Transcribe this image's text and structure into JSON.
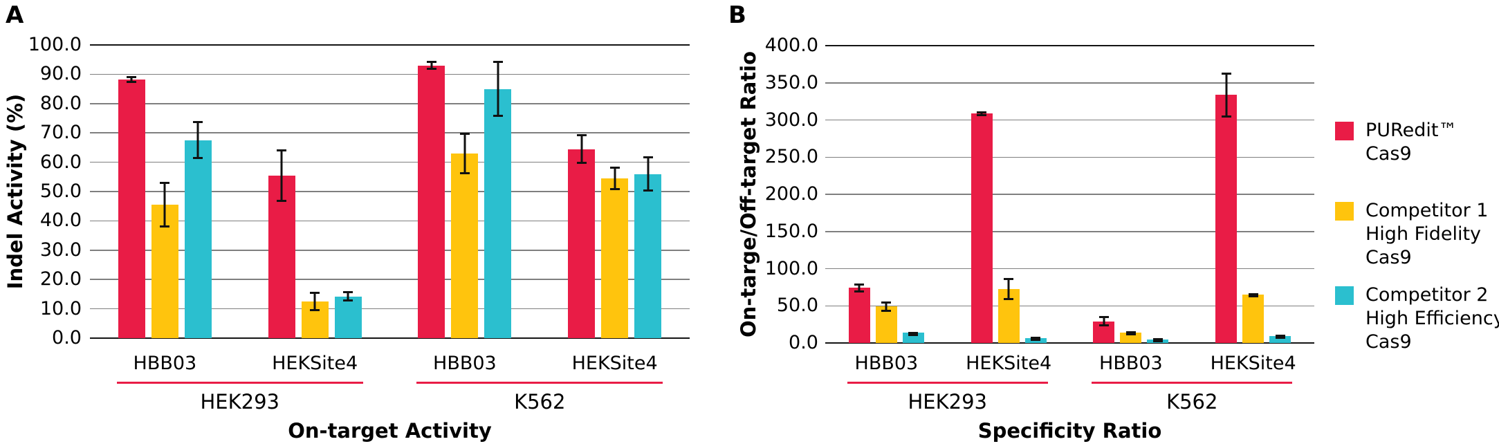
{
  "chart_data": [
    {
      "type": "bar",
      "panel_label": "A",
      "ylabel": "Indel Activity (%)",
      "xlabel": "On-target Activity",
      "ylim": [
        0,
        100
      ],
      "ytick_step": 10,
      "tick_decimals": 1,
      "grid": true,
      "legend_position": "right-of-figure",
      "categories": [
        "HBB03",
        "HEKSite4",
        "HBB03",
        "HEKSite4"
      ],
      "category_groups": [
        {
          "label": "HEK293",
          "span": [
            0,
            1
          ]
        },
        {
          "label": "K562",
          "span": [
            2,
            3
          ]
        }
      ],
      "series": [
        {
          "name": "PURedit™ Cas9",
          "color": "#E91C46",
          "values": [
            88.3,
            55.5,
            93.0,
            64.5
          ],
          "errors": [
            1.2,
            9.0,
            1.5,
            5.0
          ]
        },
        {
          "name": "Competitor 1 High Fidelity Cas9",
          "color": "#FFC40D",
          "values": [
            45.5,
            12.5,
            63.0,
            54.5
          ],
          "errors": [
            7.7,
            3.3,
            7.0,
            4.0
          ]
        },
        {
          "name": "Competitor 2 High Efficiency Cas9",
          "color": "#2BBFCF",
          "values": [
            67.5,
            14.2,
            85.0,
            56.0
          ],
          "errors": [
            6.5,
            1.8,
            9.5,
            6.0
          ]
        }
      ]
    },
    {
      "type": "bar",
      "panel_label": "B",
      "ylabel": "On-targe/Off-target Ratio",
      "xlabel": "Specificity Ratio",
      "ylim": [
        0,
        400
      ],
      "ytick_step": 50,
      "tick_decimals": 1,
      "grid": true,
      "legend_position": "right-of-figure",
      "categories": [
        "HBB03",
        "HEKSite4",
        "HBB03",
        "HEKSite4"
      ],
      "category_groups": [
        {
          "label": "HEK293",
          "span": [
            0,
            1
          ]
        },
        {
          "label": "K562",
          "span": [
            2,
            3
          ]
        }
      ],
      "series": [
        {
          "name": "PURedit™ Cas9",
          "color": "#E91C46",
          "values": [
            74.0,
            308.5,
            29.0,
            333.5
          ],
          "errors": [
            6.0,
            3.0,
            7.0,
            30.0
          ]
        },
        {
          "name": "Competitor 1 High Fidelity Cas9",
          "color": "#FFC40D",
          "values": [
            49.0,
            72.5,
            14.0,
            65.0
          ],
          "errors": [
            7.0,
            15.0,
            1.5,
            2.0
          ]
        },
        {
          "name": "Competitor 2 High Efficiency Cas9",
          "color": "#2BBFCF",
          "values": [
            13.5,
            6.5,
            5.0,
            9.0
          ],
          "errors": [
            1.0,
            1.5,
            1.5,
            2.0
          ]
        }
      ]
    }
  ],
  "legend": {
    "items": [
      {
        "color": "#E91C46",
        "lines": [
          "PURedit™",
          "Cas9"
        ]
      },
      {
        "color": "#FFC40D",
        "lines": [
          "Competitor 1",
          "High Fidelity",
          "Cas9"
        ]
      },
      {
        "color": "#2BBFCF",
        "lines": [
          "Competitor 2",
          "High Efficiency",
          "Cas9"
        ]
      }
    ]
  },
  "colors": {
    "puredit_red": "#E91C46",
    "competitor1_yellow": "#FFC40D",
    "competitor2_cyan": "#2BBFCF",
    "gridline_gray": "#7F7F7F",
    "axis_black": "#141414",
    "group_underline_red": "#E91C46",
    "background": "#FFFFFF"
  }
}
